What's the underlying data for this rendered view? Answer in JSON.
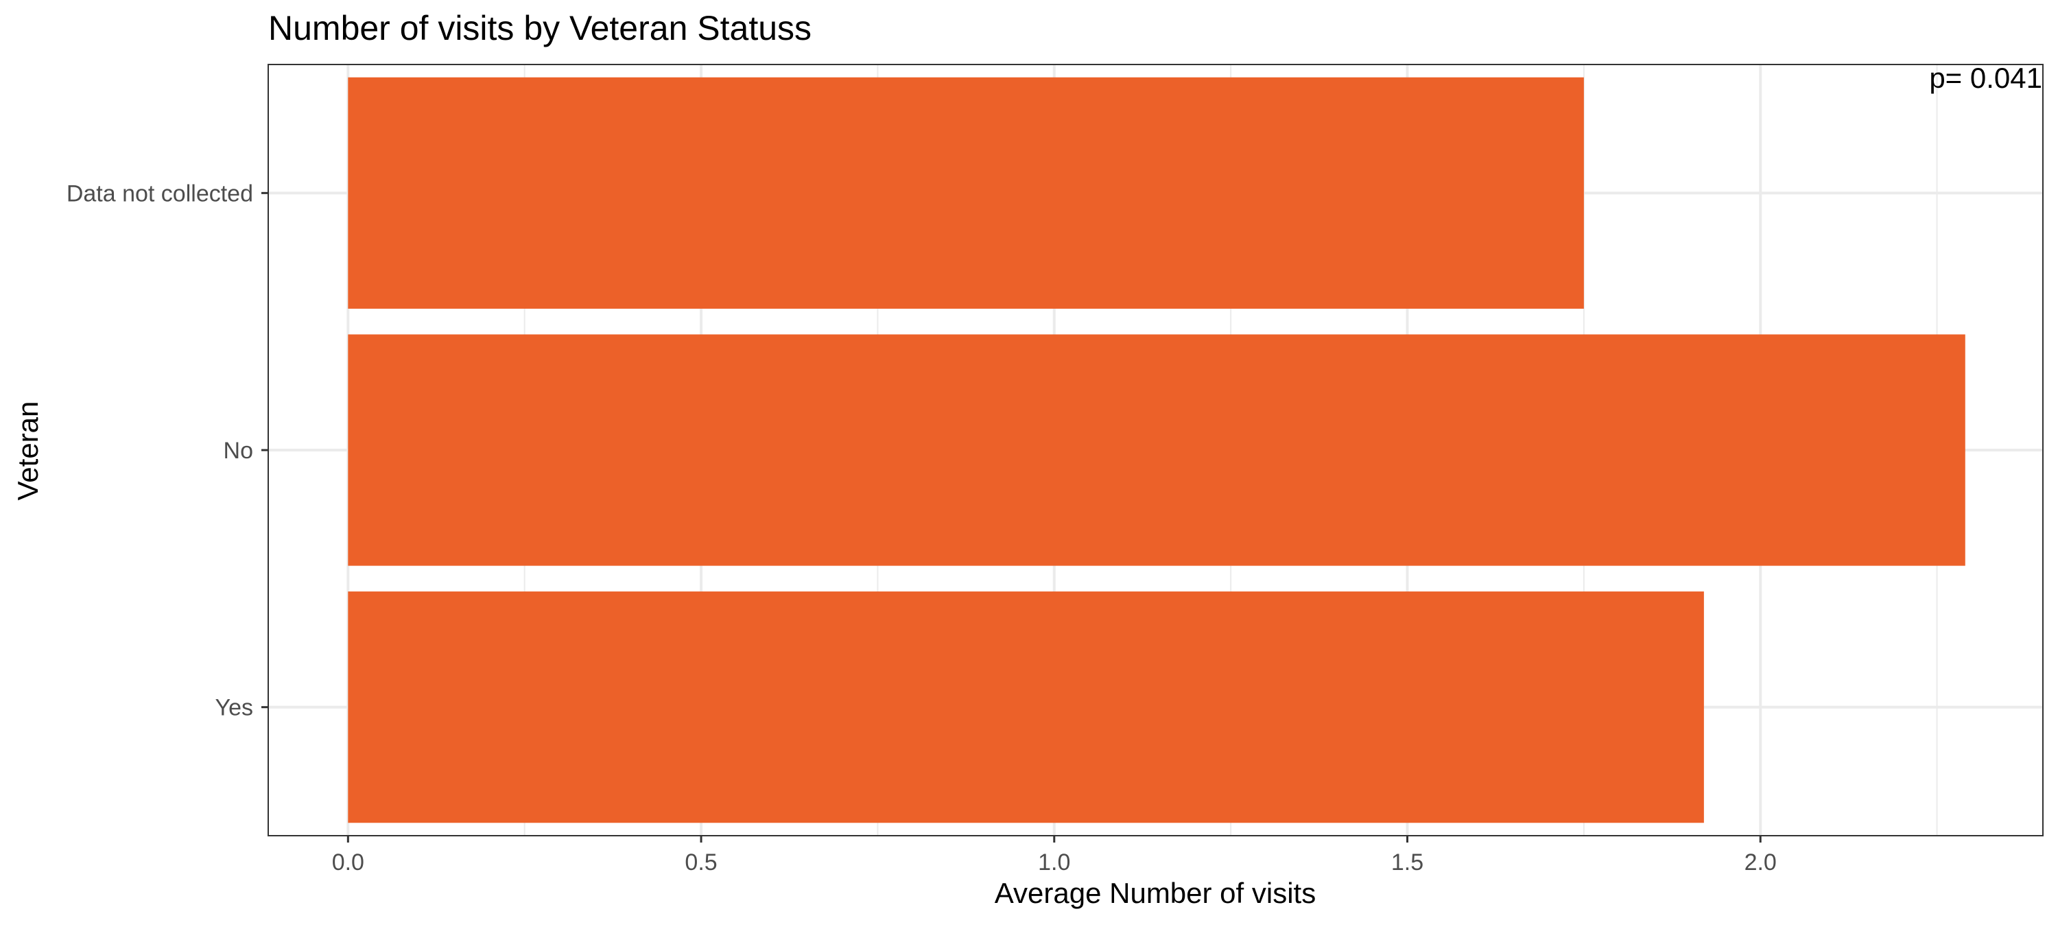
{
  "chart_data": {
    "type": "bar",
    "orientation": "horizontal",
    "title": "Number of visits by Veteran Statuss",
    "xlabel": "Average Number of visits",
    "ylabel": "Veteran",
    "categories": [
      "Yes",
      "No",
      "Data not collected"
    ],
    "values": [
      1.92,
      2.29,
      1.75
    ],
    "xlim": [
      -0.113,
      2.4
    ],
    "xticks": [
      "0.0",
      "0.5",
      "1.0",
      "1.5",
      "2.0"
    ],
    "annotation": "p= 0.041",
    "annotation_position": "top-right",
    "grid": true,
    "legend": "none",
    "bar_color": "#EC6129",
    "grid_color": "#EBEBEB",
    "panel_border_color": "#333333"
  }
}
